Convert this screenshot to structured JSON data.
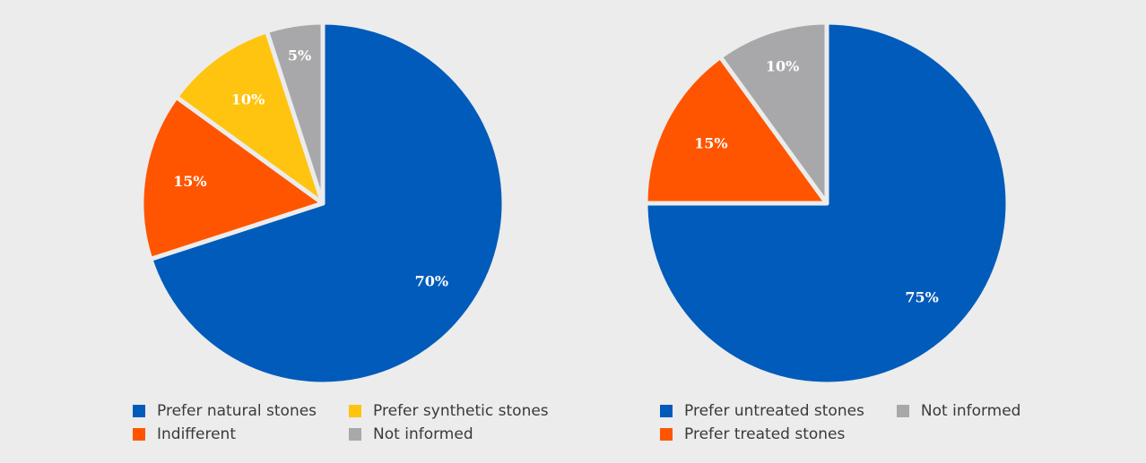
{
  "chart_data": [
    {
      "type": "pie",
      "title": "",
      "categories": [
        "Prefer natural stones",
        "Indifferent",
        "Prefer synthetic stones",
        "Not informed"
      ],
      "values": [
        70,
        15,
        10,
        5
      ],
      "labels": [
        "70%",
        "15%",
        "10%",
        "5%"
      ],
      "colors": [
        "#005bbb",
        "#ff5500",
        "#ffc40f",
        "#a8a8aa"
      ],
      "legend_position": "bottom"
    },
    {
      "type": "pie",
      "title": "",
      "categories": [
        "Prefer untreated stones",
        "Prefer treated stones",
        "Not informed"
      ],
      "values": [
        75,
        15,
        10
      ],
      "labels": [
        "75%",
        "15%",
        "10%"
      ],
      "colors": [
        "#005bbb",
        "#ff5500",
        "#a8a8aa"
      ],
      "legend_position": "bottom"
    }
  ],
  "legend1": [
    {
      "label": "Prefer natural stones",
      "color": "#005bbb"
    },
    {
      "label": "Prefer synthetic stones",
      "color": "#ffc40f"
    },
    {
      "label": "Indifferent",
      "color": "#ff5500"
    },
    {
      "label": "Not informed",
      "color": "#a8a8aa"
    }
  ],
  "legend2": [
    {
      "label": "Prefer untreated stones",
      "color": "#005bbb"
    },
    {
      "label": "Not informed",
      "color": "#a8a8aa"
    },
    {
      "label": "Prefer treated stones",
      "color": "#ff5500"
    }
  ]
}
